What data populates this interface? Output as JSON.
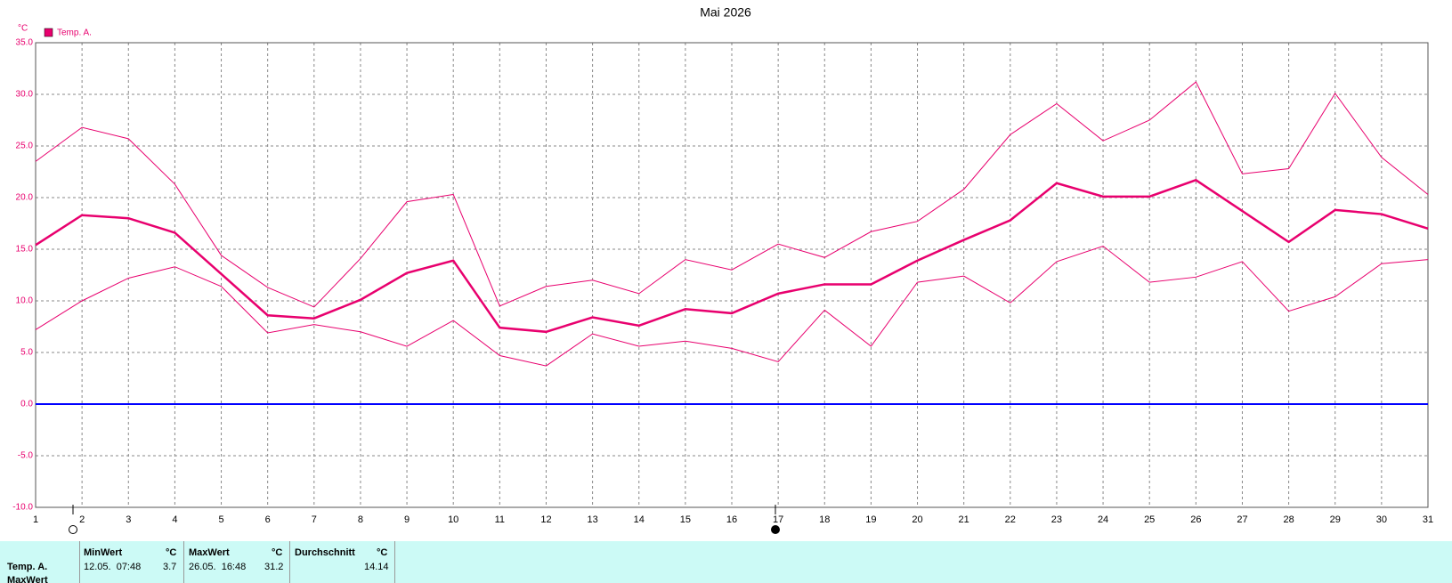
{
  "chart_data": {
    "type": "line",
    "title": "Mai 2026",
    "y_label": "°C",
    "x": [
      1,
      2,
      3,
      4,
      5,
      6,
      7,
      8,
      9,
      10,
      11,
      12,
      13,
      14,
      15,
      16,
      17,
      18,
      19,
      20,
      21,
      22,
      23,
      24,
      25,
      26,
      27,
      28,
      29,
      30,
      31
    ],
    "xlim": [
      1,
      31
    ],
    "xticks": [
      1,
      2,
      3,
      4,
      5,
      6,
      7,
      8,
      9,
      10,
      11,
      12,
      13,
      14,
      15,
      16,
      17,
      18,
      19,
      20,
      21,
      22,
      23,
      24,
      25,
      26,
      27,
      28,
      29,
      30,
      31
    ],
    "ylim": [
      -10,
      35
    ],
    "yticks": [
      {
        "value": -10,
        "label": "-10.0"
      },
      {
        "value": -5,
        "label": "-5.0"
      },
      {
        "value": 0,
        "label": "0.0"
      },
      {
        "value": 5,
        "label": "5.0"
      },
      {
        "value": 10,
        "label": "10.0"
      },
      {
        "value": 15,
        "label": "15.0"
      },
      {
        "value": 20,
        "label": "20.0"
      },
      {
        "value": 25,
        "label": "25.0"
      },
      {
        "value": 30,
        "label": "30.0"
      },
      {
        "value": 35,
        "label": "35.0"
      }
    ],
    "grid": true,
    "zero_line_color": "#0000ff",
    "legend": "top-left",
    "series": [
      {
        "name": "Temp. A.",
        "color": "#e8006e",
        "values": [
          15.4,
          18.3,
          18.0,
          16.6,
          12.6,
          8.6,
          8.3,
          10.1,
          12.7,
          13.9,
          7.4,
          7.0,
          8.4,
          7.6,
          9.2,
          8.8,
          10.7,
          11.6,
          11.6,
          13.9,
          15.9,
          17.8,
          21.4,
          20.1,
          20.1,
          21.7,
          18.7,
          15.7,
          18.8,
          18.4,
          17.0
        ]
      },
      {
        "color": "#e8006e",
        "values": [
          23.5,
          26.8,
          25.7,
          21.3,
          14.4,
          11.3,
          9.4,
          14.1,
          19.6,
          20.3,
          9.5,
          11.4,
          12.0,
          10.7,
          14.0,
          13.0,
          15.5,
          14.2,
          16.7,
          17.7,
          20.8,
          26.1,
          29.1,
          25.5,
          27.5,
          31.2,
          22.3,
          22.8,
          30.1,
          23.9,
          20.3
        ]
      },
      {
        "color": "#e8006e",
        "values": [
          7.2,
          10.0,
          12.2,
          13.3,
          11.4,
          6.9,
          7.7,
          7.0,
          5.6,
          8.1,
          4.7,
          3.7,
          6.8,
          5.6,
          6.1,
          5.4,
          4.1,
          9.1,
          5.6,
          11.8,
          12.4,
          9.8,
          13.8,
          15.3,
          11.8,
          12.3,
          13.8,
          9.0,
          10.4,
          13.6,
          14.0
        ]
      }
    ]
  },
  "table": {
    "headers": [
      "MinWert",
      "°C",
      "MaxWert",
      "°C",
      "Durchschnitt",
      "°C"
    ],
    "rows": [
      [
        "Temp. A.",
        "12.05.  07:48",
        "3.7",
        "26.05.  16:48",
        "31.2",
        "14.14"
      ],
      [
        "MaxWert"
      ]
    ]
  }
}
